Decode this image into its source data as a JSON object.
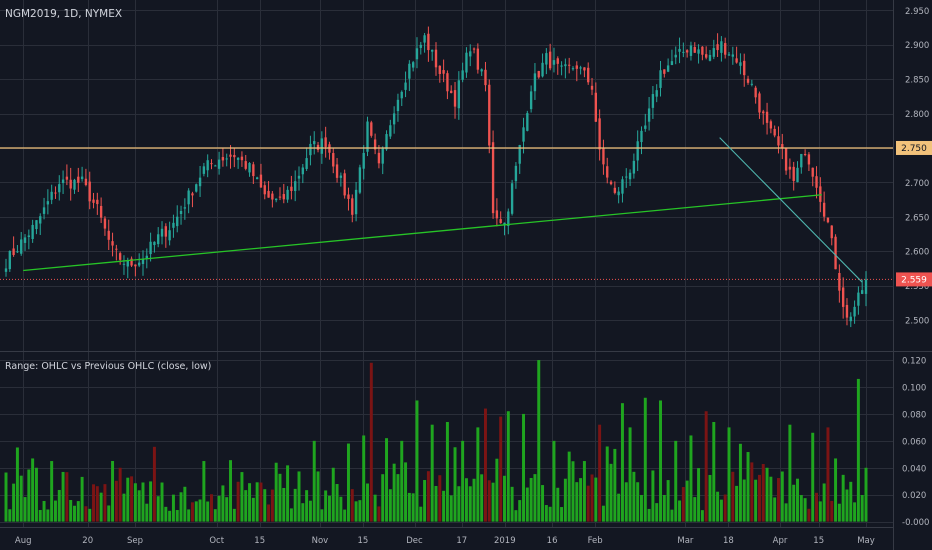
{
  "header": {
    "symbol": "NGM2019, 1D, NYMEX"
  },
  "indicator": {
    "title": "Range: OHLC vs Previous OHLC (close, low)"
  },
  "colors": {
    "background": "#131722",
    "grid": "#2a2e39",
    "up": "#26a69a",
    "down": "#ef5350",
    "hist_up": "#1fa51f",
    "hist_down": "#7b1414",
    "resistance": "#f2c27b",
    "support": "#27c427",
    "trend_down": "#4fb5ae",
    "price_line": "#ef5350",
    "axis_text": "#b2b5be"
  },
  "chart_data": [
    {
      "type": "candlestick",
      "title": "NGM2019, 1D, NYMEX",
      "ylim": [
        2.455,
        2.965
      ],
      "y_ticks": [
        "2.500",
        "2.550",
        "2.600",
        "2.650",
        "2.700",
        "2.750",
        "2.800",
        "2.850",
        "2.900",
        "2.950"
      ],
      "x_ticks": [
        "Aug",
        "20",
        "Sep",
        "Oct",
        "15",
        "Nov",
        "15",
        "Dec",
        "17",
        "2019",
        "16",
        "Feb",
        "Mar",
        "18",
        "Apr",
        "15",
        "May"
      ],
      "last_price_label": "2.559",
      "last_price": 2.559,
      "resistance_label": "2.750",
      "resistance_level": 2.75,
      "support_trendline": {
        "from": [
          "Aug",
          2.572
        ],
        "to": [
          "Apr",
          2.682
        ]
      },
      "down_trendline": {
        "from": [
          "Mar",
          2.765
        ],
        "to": [
          "May",
          2.555
        ]
      },
      "keypoints": [
        [
          0,
          2.585
        ],
        [
          8,
          2.64
        ],
        [
          14,
          2.7
        ],
        [
          20,
          2.7
        ],
        [
          24,
          2.66
        ],
        [
          28,
          2.6
        ],
        [
          32,
          2.58
        ],
        [
          36,
          2.59
        ],
        [
          40,
          2.62
        ],
        [
          44,
          2.64
        ],
        [
          48,
          2.68
        ],
        [
          52,
          2.72
        ],
        [
          56,
          2.735
        ],
        [
          60,
          2.74
        ],
        [
          64,
          2.72
        ],
        [
          68,
          2.68
        ],
        [
          72,
          2.67
        ],
        [
          76,
          2.7
        ],
        [
          80,
          2.75
        ],
        [
          84,
          2.76
        ],
        [
          88,
          2.7
        ],
        [
          91,
          2.66
        ],
        [
          95,
          2.78
        ],
        [
          98,
          2.72
        ],
        [
          102,
          2.81
        ],
        [
          106,
          2.87
        ],
        [
          110,
          2.91
        ],
        [
          114,
          2.86
        ],
        [
          118,
          2.82
        ],
        [
          122,
          2.9
        ],
        [
          126,
          2.84
        ],
        [
          128,
          2.66
        ],
        [
          131,
          2.64
        ],
        [
          134,
          2.72
        ],
        [
          138,
          2.84
        ],
        [
          142,
          2.88
        ],
        [
          146,
          2.86
        ],
        [
          150,
          2.87
        ],
        [
          154,
          2.84
        ],
        [
          156,
          2.74
        ],
        [
          160,
          2.68
        ],
        [
          164,
          2.72
        ],
        [
          168,
          2.78
        ],
        [
          172,
          2.86
        ],
        [
          176,
          2.88
        ],
        [
          180,
          2.9
        ],
        [
          184,
          2.88
        ],
        [
          188,
          2.9
        ],
        [
          192,
          2.88
        ],
        [
          196,
          2.84
        ],
        [
          200,
          2.78
        ],
        [
          204,
          2.74
        ],
        [
          207,
          2.7
        ],
        [
          210,
          2.75
        ],
        [
          213,
          2.7
        ],
        [
          216,
          2.64
        ],
        [
          219,
          2.55
        ],
        [
          221,
          2.5
        ],
        [
          224,
          2.53
        ],
        [
          226,
          2.56
        ]
      ]
    },
    {
      "type": "bar",
      "title": "Range: OHLC vs Previous OHLC (close, low)",
      "ylim": [
        -0.004,
        0.126
      ],
      "y_ticks": [
        "-0.000",
        "0.020",
        "0.040",
        "0.060",
        "0.080",
        "0.100",
        "0.120"
      ],
      "spikes": [
        [
          8,
          0.04
        ],
        [
          12,
          0.045
        ],
        [
          30,
          0.04
        ],
        [
          52,
          0.045
        ],
        [
          81,
          0.06
        ],
        [
          86,
          0.04
        ],
        [
          90,
          0.058
        ],
        [
          94,
          0.064
        ],
        [
          96,
          0.118
        ],
        [
          100,
          0.062
        ],
        [
          104,
          0.06
        ],
        [
          108,
          0.09
        ],
        [
          112,
          0.072
        ],
        [
          116,
          0.074
        ],
        [
          120,
          0.06
        ],
        [
          124,
          0.07
        ],
        [
          126,
          0.084
        ],
        [
          130,
          0.078
        ],
        [
          132,
          0.082
        ],
        [
          136,
          0.08
        ],
        [
          140,
          0.12
        ],
        [
          144,
          0.06
        ],
        [
          148,
          0.052
        ],
        [
          152,
          0.045
        ],
        [
          156,
          0.072
        ],
        [
          160,
          0.054
        ],
        [
          162,
          0.088
        ],
        [
          164,
          0.07
        ],
        [
          168,
          0.092
        ],
        [
          172,
          0.09
        ],
        [
          176,
          0.06
        ],
        [
          180,
          0.064
        ],
        [
          184,
          0.082
        ],
        [
          186,
          0.074
        ],
        [
          190,
          0.07
        ],
        [
          196,
          0.044
        ],
        [
          200,
          0.04
        ],
        [
          206,
          0.072
        ],
        [
          212,
          0.066
        ],
        [
          216,
          0.07
        ],
        [
          224,
          0.106
        ],
        [
          226,
          0.04
        ]
      ]
    }
  ]
}
